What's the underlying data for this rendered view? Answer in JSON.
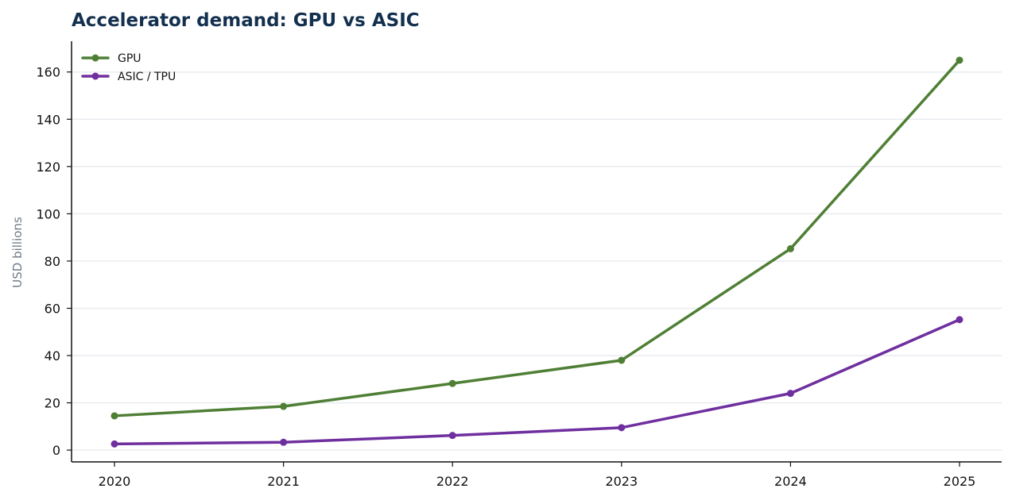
{
  "chart_data": {
    "type": "line",
    "title": "Accelerator demand: GPU vs ASIC",
    "xlabel": "",
    "ylabel": "USD billions",
    "x": [
      "2020",
      "2021",
      "2022",
      "2023",
      "2024",
      "2025"
    ],
    "y_ticks": [
      "0",
      "20",
      "40",
      "60",
      "80",
      "100",
      "120",
      "140",
      "160"
    ],
    "ylim": [
      -5,
      173
    ],
    "grid": true,
    "legend_position": "top-left",
    "series": [
      {
        "name": "GPU",
        "color": "#4f7f35",
        "values": [
          14.5,
          18.5,
          28.2,
          38.0,
          85.2,
          165.0
        ]
      },
      {
        "name": "ASIC / TPU",
        "color": "#6f2f9f",
        "values": [
          2.6,
          3.3,
          6.2,
          9.5,
          24.0,
          55.2
        ]
      }
    ]
  }
}
